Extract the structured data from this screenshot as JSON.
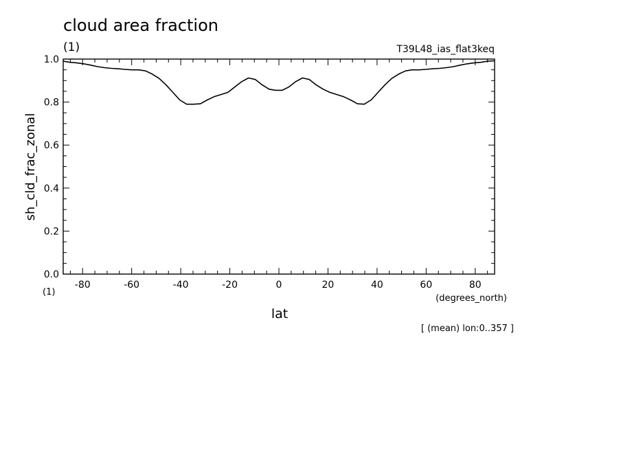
{
  "chart_data": {
    "type": "line",
    "title": "cloud area fraction",
    "title_unit": "(1)",
    "run_label": "T39L48_ias_flat3keq",
    "ylabel": "sh_cld_frac_zonal",
    "y_unit": "(1)",
    "xlabel": "lat",
    "x_unit": "(degrees_north)",
    "footnote": "[ (mean) lon:0..357 ]",
    "xlim": [
      -87.9,
      87.9
    ],
    "ylim": [
      0.0,
      1.0
    ],
    "x_ticks": [
      -80,
      -60,
      -40,
      -20,
      0,
      20,
      40,
      60,
      80
    ],
    "x_tick_labels": [
      "-80",
      "-60",
      "-40",
      "-20",
      "0",
      "20",
      "40",
      "60",
      "80"
    ],
    "y_ticks": [
      0.0,
      0.2,
      0.4,
      0.6,
      0.8,
      1.0
    ],
    "y_tick_labels": [
      "0.0",
      "0.2",
      "0.4",
      "0.6",
      "0.8",
      "1.0"
    ],
    "grid": false,
    "line_color": "#000000",
    "series": [
      {
        "x": [
          -87.9,
          -85.1,
          -82.3,
          -79.5,
          -76.7,
          -73.9,
          -71.1,
          -68.3,
          -65.5,
          -62.7,
          -59.9,
          -57.1,
          -54.3,
          -51.6,
          -48.8,
          -46.0,
          -43.2,
          -40.4,
          -37.6,
          -34.8,
          -32.0,
          -29.2,
          -26.4,
          -23.6,
          -20.8,
          -18.0,
          -15.2,
          -12.4,
          -9.6,
          -6.8,
          -4.0,
          -1.4,
          1.4,
          4.0,
          6.8,
          9.6,
          12.4,
          15.2,
          18.0,
          20.8,
          23.6,
          26.4,
          29.2,
          32.0,
          34.8,
          37.6,
          40.4,
          43.2,
          46.0,
          48.8,
          51.6,
          54.3,
          57.1,
          59.9,
          62.7,
          65.5,
          68.3,
          71.1,
          73.9,
          76.7,
          79.5,
          82.3,
          85.1,
          87.9
        ],
        "values": [
          0.99,
          0.985,
          0.982,
          0.978,
          0.972,
          0.965,
          0.96,
          0.957,
          0.955,
          0.952,
          0.95,
          0.95,
          0.945,
          0.93,
          0.91,
          0.88,
          0.845,
          0.81,
          0.79,
          0.79,
          0.792,
          0.81,
          0.825,
          0.835,
          0.845,
          0.87,
          0.895,
          0.912,
          0.905,
          0.88,
          0.86,
          0.855,
          0.855,
          0.87,
          0.895,
          0.912,
          0.905,
          0.88,
          0.86,
          0.845,
          0.835,
          0.825,
          0.81,
          0.792,
          0.79,
          0.81,
          0.845,
          0.88,
          0.91,
          0.93,
          0.945,
          0.95,
          0.95,
          0.952,
          0.955,
          0.957,
          0.96,
          0.965,
          0.972,
          0.978,
          0.982,
          0.985,
          0.99,
          0.992
        ]
      }
    ]
  }
}
